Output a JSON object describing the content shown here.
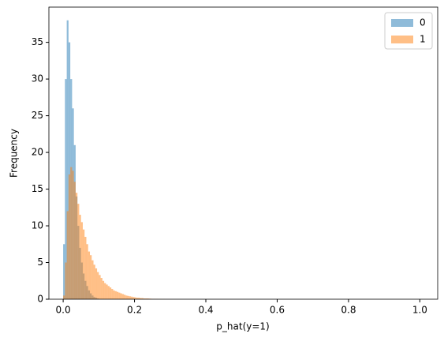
{
  "chart_data": {
    "type": "histogram",
    "x_label": "p_hat(y=1)",
    "y_label": "Frequency",
    "bins": [
      0,
      0.005,
      0.01,
      0.015,
      0.02,
      0.025,
      0.03,
      0.035,
      0.04,
      0.045,
      0.05,
      0.055,
      0.06,
      0.065,
      0.07,
      0.075,
      0.08,
      0.085,
      0.09,
      0.095,
      0.1,
      0.105,
      0.11,
      0.115,
      0.12,
      0.125,
      0.13,
      0.135,
      0.14,
      0.145,
      0.15,
      0.155,
      0.16,
      0.165,
      0.17,
      0.175,
      0.18,
      0.185,
      0.19,
      0.195,
      0.2,
      0.205,
      0.21,
      0.215,
      0.22,
      0.225,
      0.23,
      0.235,
      0.24,
      0.245,
      0.25,
      0.255,
      0.26,
      0.265,
      0.27,
      0.275,
      0.28,
      0.285,
      0.29,
      0.295,
      0.3
    ],
    "series": [
      {
        "name": "0",
        "color": "#1f77b4",
        "values": [
          7.5,
          30,
          38,
          35,
          30,
          26,
          21,
          14,
          10,
          7,
          5,
          3.5,
          2.5,
          1.8,
          1.2,
          0.8,
          0.5,
          0.3,
          0.2,
          0.1,
          0,
          0,
          0,
          0,
          0,
          0,
          0,
          0,
          0,
          0,
          0,
          0,
          0,
          0,
          0,
          0,
          0,
          0,
          0,
          0,
          0,
          0,
          0,
          0,
          0,
          0,
          0,
          0,
          0,
          0,
          0,
          0,
          0,
          0,
          0,
          0,
          0,
          0,
          0,
          0
        ]
      },
      {
        "name": "1",
        "color": "#ff7f0e",
        "values": [
          0.5,
          5,
          12,
          17,
          18,
          17.5,
          16,
          14.5,
          13,
          11.5,
          10.5,
          9.5,
          8.5,
          7.5,
          6.5,
          6,
          5.3,
          4.7,
          4.2,
          3.7,
          3.3,
          2.9,
          2.5,
          2.2,
          2,
          1.8,
          1.6,
          1.4,
          1.2,
          1.1,
          1,
          0.9,
          0.8,
          0.7,
          0.6,
          0.5,
          0.45,
          0.4,
          0.35,
          0.3,
          0.25,
          0.2,
          0.2,
          0.15,
          0.15,
          0.1,
          0.1,
          0.1,
          0.08,
          0.06,
          0.05,
          0.05,
          0.04,
          0.03,
          0.03,
          0.02,
          0.02,
          0.01,
          0.01,
          0.01
        ]
      }
    ],
    "alpha": 0.5,
    "xlim": [
      -0.04,
      1.05
    ],
    "ylim": [
      0,
      39.8
    ],
    "xticks": [
      {
        "value": 0,
        "label": "0.0"
      },
      0.2,
      0.4,
      0.6,
      0.8,
      {
        "value": 1,
        "label": "1.0"
      }
    ],
    "yticks": [
      0,
      5,
      10,
      15,
      20,
      25,
      30,
      35
    ],
    "legend": "upper right"
  }
}
